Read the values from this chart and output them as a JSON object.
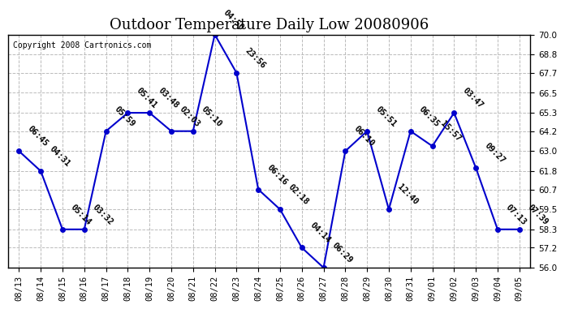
{
  "title": "Outdoor Temperature Daily Low 20080906",
  "copyright": "Copyright 2008 Cartronics.com",
  "x_labels": [
    "08/13",
    "08/14",
    "08/15",
    "08/16",
    "08/17",
    "08/18",
    "08/19",
    "08/20",
    "08/21",
    "08/22",
    "08/23",
    "08/24",
    "08/25",
    "08/26",
    "08/27",
    "08/28",
    "08/29",
    "08/30",
    "08/31",
    "09/01",
    "09/02",
    "09/03",
    "09/04",
    "09/05"
  ],
  "y_values": [
    63.0,
    61.8,
    58.3,
    58.3,
    64.2,
    65.3,
    65.3,
    64.2,
    64.2,
    70.0,
    67.7,
    60.7,
    59.5,
    57.2,
    56.0,
    63.0,
    64.2,
    59.5,
    64.2,
    63.3,
    65.3,
    62.0,
    58.3,
    58.3
  ],
  "time_labels": [
    "06:45",
    "04:31",
    "05:14",
    "03:32",
    "05:59",
    "05:41",
    "03:48",
    "02:03",
    "05:10",
    "04:50",
    "23:56",
    "06:16",
    "02:18",
    "04:14",
    "06:29",
    "06:10",
    "05:51",
    "12:40",
    "06:35",
    "15:57",
    "03:47",
    "09:27",
    "07:13",
    "07:39"
  ],
  "line_color": "#0000cc",
  "marker_color": "#0000cc",
  "bg_color": "#ffffff",
  "grid_color": "#bbbbbb",
  "ylim": [
    56.0,
    70.0
  ],
  "yticks": [
    56.0,
    57.2,
    58.3,
    59.5,
    60.7,
    61.8,
    63.0,
    64.2,
    65.3,
    66.5,
    67.7,
    68.8,
    70.0
  ],
  "title_fontsize": 13,
  "label_fontsize": 7.5,
  "copyright_fontsize": 7
}
